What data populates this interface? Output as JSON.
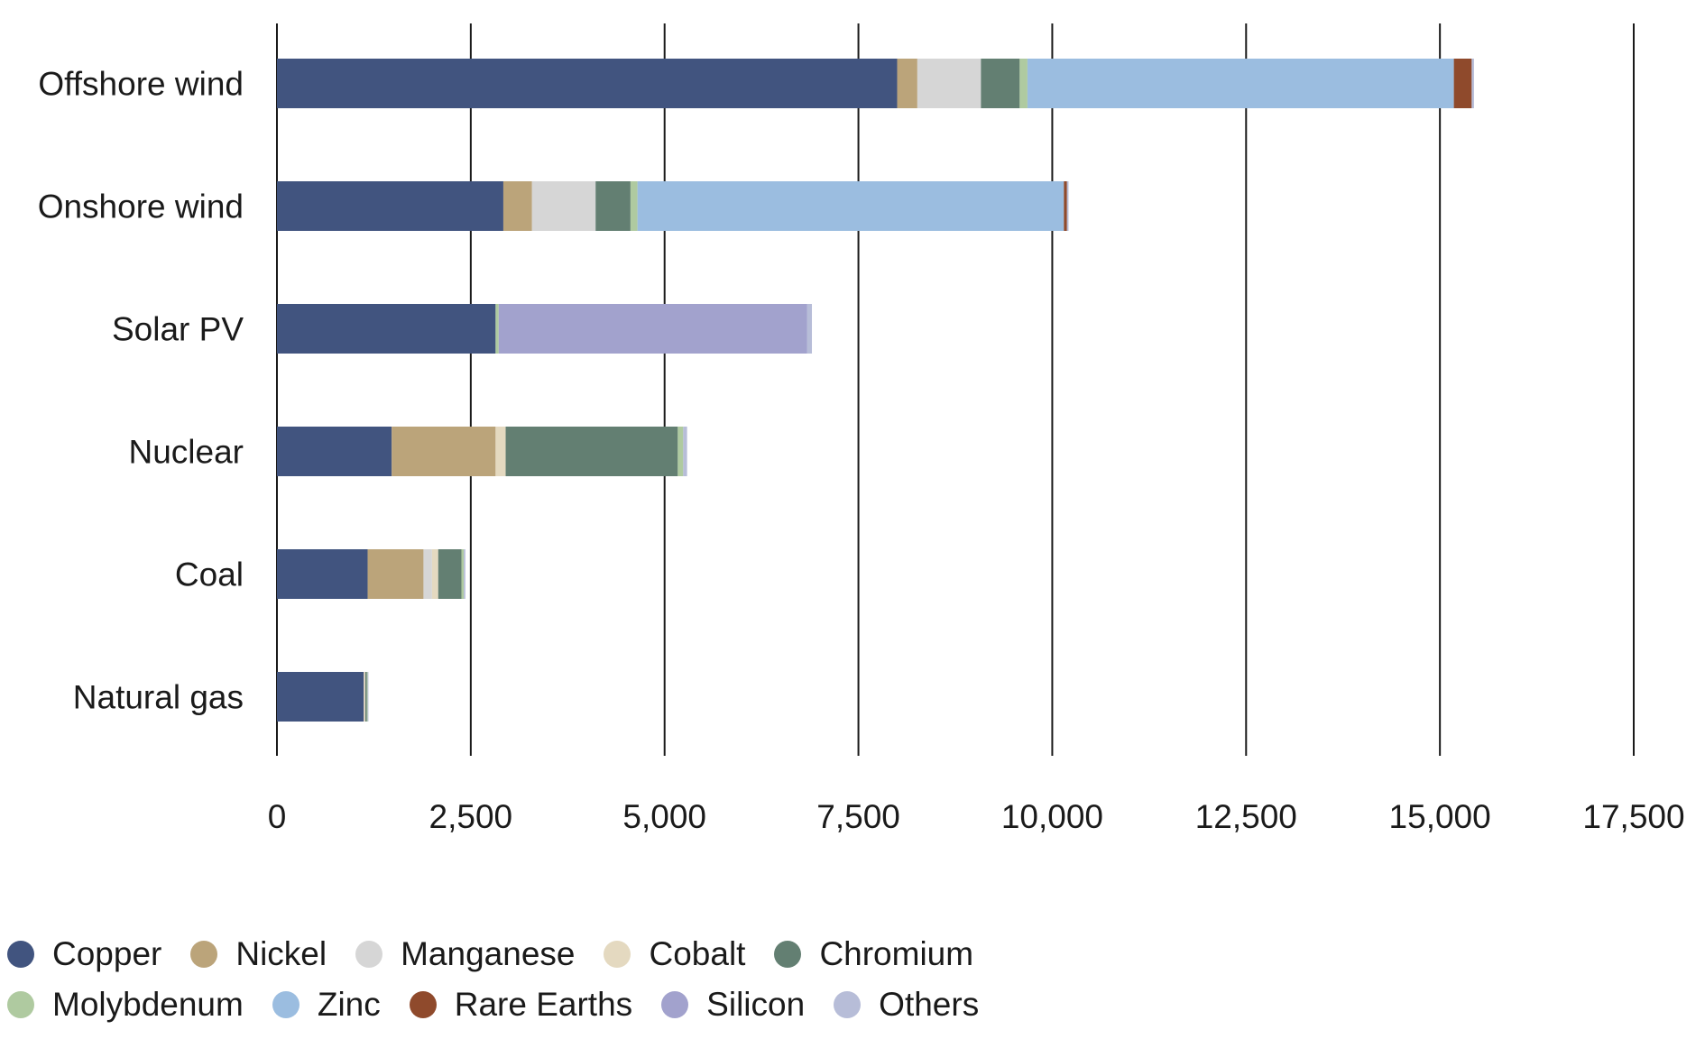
{
  "chart_data": {
    "type": "bar",
    "orientation": "horizontal",
    "stacked": true,
    "title": "",
    "xlabel": "",
    "ylabel": "",
    "xlim": [
      0,
      17500
    ],
    "xticks": [
      0,
      2500,
      5000,
      7500,
      10000,
      12500,
      15000,
      17500
    ],
    "xtick_labels": [
      "0",
      "2,500",
      "5,000",
      "7,500",
      "10,000",
      "12,500",
      "15,000",
      "17,500"
    ],
    "grid": "vertical",
    "legend_position": "bottom",
    "categories": [
      "Offshore wind",
      "Onshore wind",
      "Solar PV",
      "Nuclear",
      "Coal",
      "Natural gas"
    ],
    "series": [
      {
        "name": "Copper",
        "color": "#41547f",
        "values": [
          8000,
          2920,
          2820,
          1480,
          1170,
          1120
        ]
      },
      {
        "name": "Nickel",
        "color": "#bba47a",
        "values": [
          260,
          370,
          0,
          1340,
          720,
          0
        ]
      },
      {
        "name": "Manganese",
        "color": "#d6d6d6",
        "values": [
          820,
          820,
          0,
          0,
          110,
          0
        ]
      },
      {
        "name": "Cobalt",
        "color": "#e4d9c0",
        "values": [
          0,
          0,
          0,
          130,
          80,
          20
        ]
      },
      {
        "name": "Chromium",
        "color": "#637f72",
        "values": [
          500,
          450,
          0,
          2220,
          300,
          20
        ]
      },
      {
        "name": "Molybdenum",
        "color": "#afcaa0",
        "values": [
          100,
          90,
          40,
          70,
          30,
          10
        ]
      },
      {
        "name": "Zinc",
        "color": "#9bbde0",
        "values": [
          5500,
          5500,
          0,
          0,
          0,
          0
        ]
      },
      {
        "name": "Rare Earths",
        "color": "#8f4a2c",
        "values": [
          230,
          40,
          0,
          0,
          0,
          0
        ]
      },
      {
        "name": "Silicon",
        "color": "#a2a2cd",
        "values": [
          0,
          0,
          3980,
          0,
          0,
          0
        ]
      },
      {
        "name": "Others",
        "color": "#b7bdd8",
        "values": [
          30,
          20,
          60,
          50,
          20,
          10
        ]
      }
    ]
  }
}
